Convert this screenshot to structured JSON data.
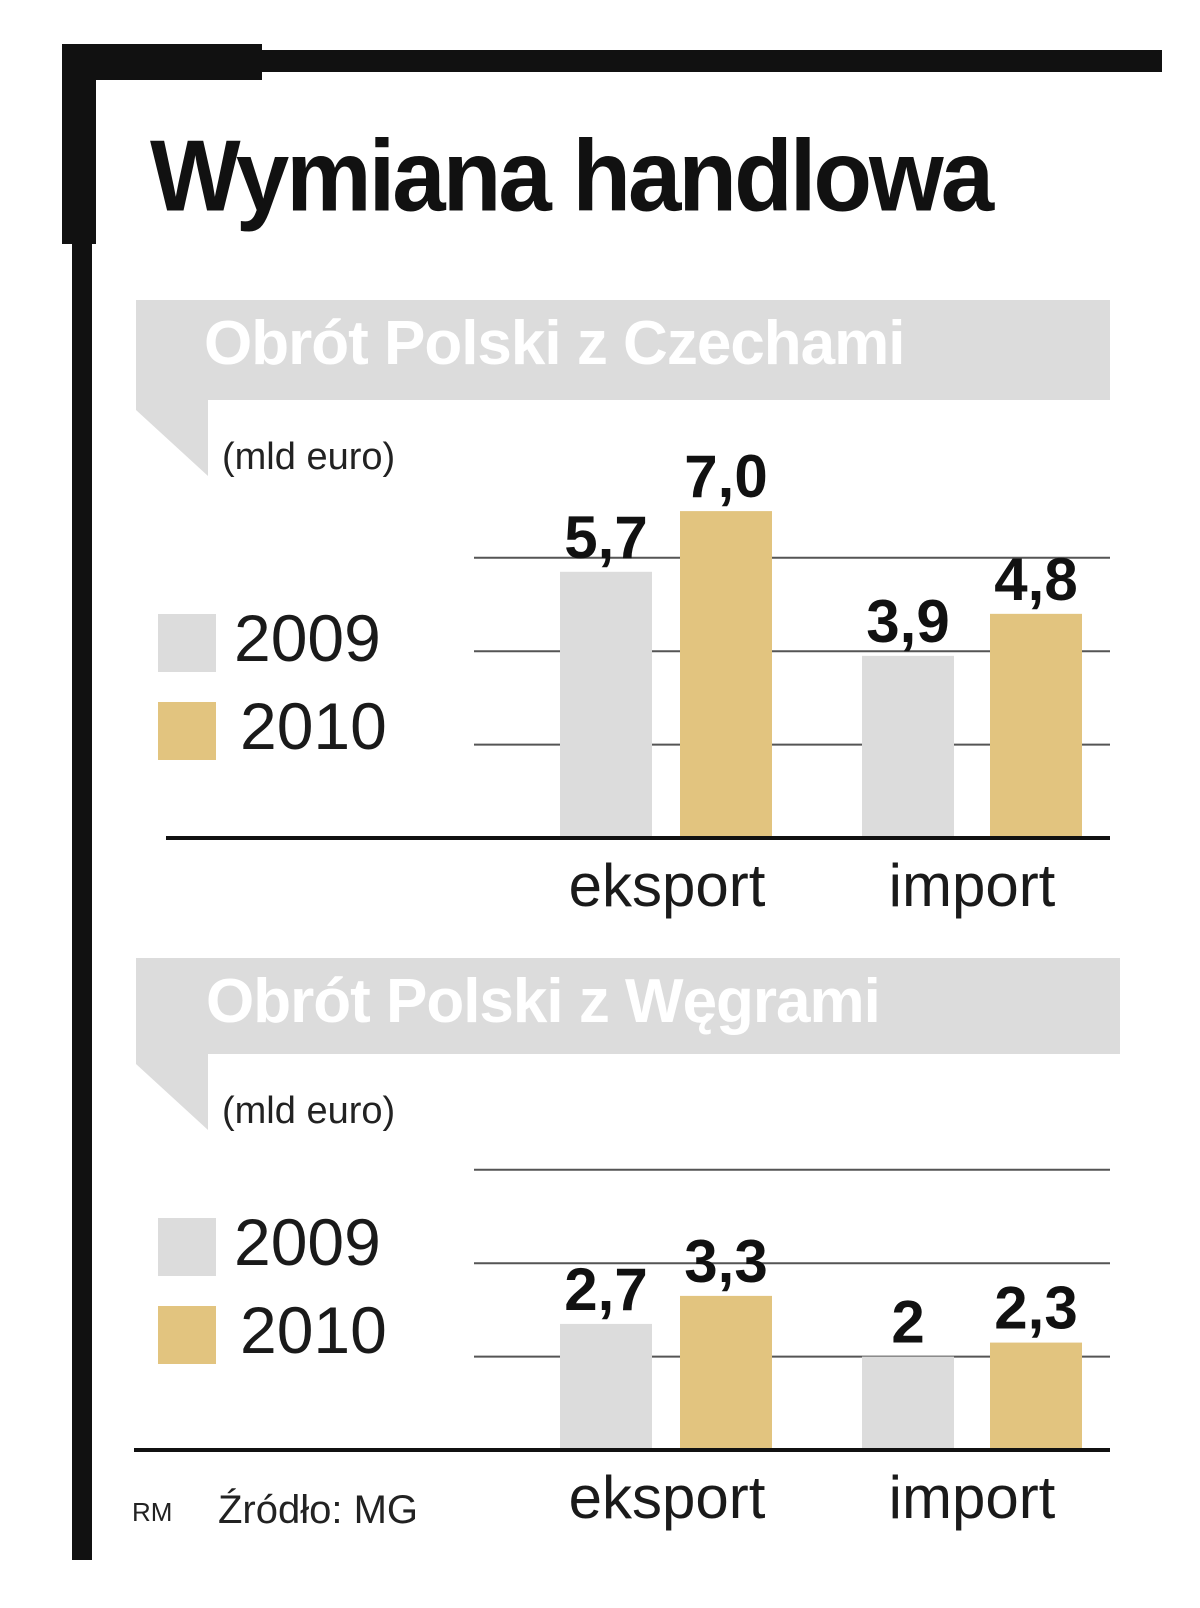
{
  "title": "Wymiana handlowa",
  "colors": {
    "y2009": "#dcdcdc",
    "y2010": "#e2c47f",
    "banner": "#dcdcdc",
    "frame": "#111111"
  },
  "legend": [
    "2009",
    "2010"
  ],
  "footer": {
    "author": "RM",
    "source": "Źródło: MG"
  },
  "chart_data": [
    {
      "type": "bar",
      "title": "Obrót Polski z Czechami",
      "unit": "(mld euro)",
      "categories": [
        "eksport",
        "import"
      ],
      "series": [
        {
          "name": "2009",
          "values": [
            5.7,
            3.9
          ],
          "labels": [
            "5,7",
            "3,9"
          ]
        },
        {
          "name": "2010",
          "values": [
            7.0,
            4.8
          ],
          "labels": [
            "7,0",
            "4,8"
          ]
        }
      ],
      "grid": true
    },
    {
      "type": "bar",
      "title": "Obrót Polski z Węgrami",
      "unit": "(mld euro)",
      "categories": [
        "eksport",
        "import"
      ],
      "series": [
        {
          "name": "2009",
          "values": [
            2.7,
            2.0
          ],
          "labels": [
            "2,7",
            "2"
          ]
        },
        {
          "name": "2010",
          "values": [
            3.3,
            2.3
          ],
          "labels": [
            "3,3",
            "2,3"
          ]
        }
      ],
      "grid": true
    }
  ]
}
